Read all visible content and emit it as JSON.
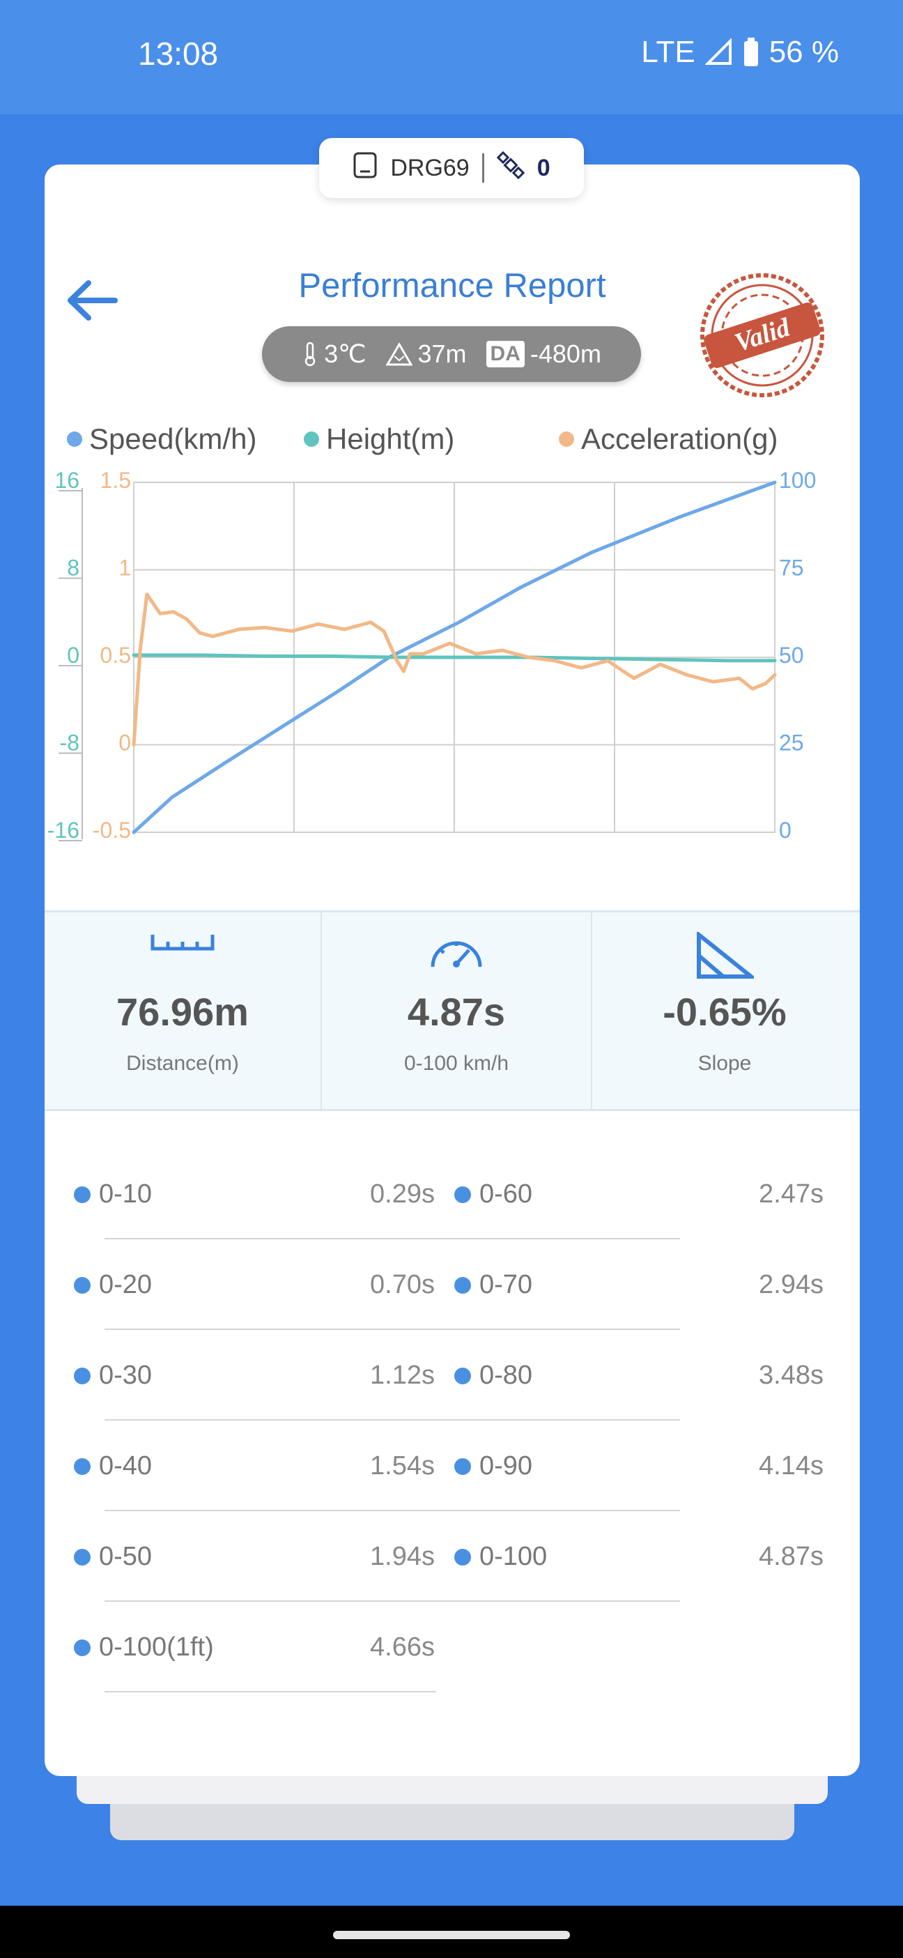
{
  "status_bar": {
    "time": "13:08",
    "network": "LTE",
    "battery": "56 %"
  },
  "device": {
    "name": "DRG69",
    "satellites": "0"
  },
  "header": {
    "back_icon": "arrow-left-icon",
    "title": "Performance Report",
    "stamp_text": "Valid"
  },
  "conditions": {
    "temperature": "3℃",
    "altitude": "37m",
    "da_label": "DA",
    "density_altitude": "-480m"
  },
  "legend": [
    {
      "name": "Speed(km/h)",
      "color": "#6ea8e8"
    },
    {
      "name": "Height(m)",
      "color": "#5fc4bd"
    },
    {
      "name": "Acceleration(g)",
      "color": "#f2b887"
    }
  ],
  "chart_data": {
    "type": "line",
    "title": "",
    "grid": true,
    "x_range": [
      0,
      4.87
    ],
    "axes": {
      "height_ticks": [
        "16",
        "8",
        "0",
        "-8",
        "-16"
      ],
      "accel_ticks": [
        "1.5",
        "1",
        "0.5",
        "0",
        "-0.5"
      ],
      "speed_ticks": [
        "100",
        "75",
        "50",
        "25",
        "0"
      ],
      "height_range": [
        -16,
        16
      ],
      "accel_range": [
        -0.5,
        1.5
      ],
      "speed_range": [
        0,
        100
      ]
    },
    "series": [
      {
        "name": "Speed(km/h)",
        "axis": "speed",
        "color": "#6ea8e8",
        "x": [
          0,
          0.29,
          0.7,
          1.12,
          1.54,
          1.94,
          2.47,
          2.94,
          3.48,
          4.14,
          4.87
        ],
        "y": [
          0,
          10,
          20,
          30,
          40,
          50,
          60,
          70,
          80,
          90,
          100
        ]
      },
      {
        "name": "Height(m)",
        "axis": "height",
        "color": "#5fc4bd",
        "x": [
          0,
          0.5,
          1.0,
          1.5,
          2.0,
          2.5,
          3.0,
          3.5,
          4.0,
          4.5,
          4.87
        ],
        "y": [
          0.2,
          0.2,
          0.1,
          0.1,
          0.0,
          0.0,
          0.0,
          -0.1,
          -0.2,
          -0.3,
          -0.3
        ]
      },
      {
        "name": "Acceleration(g)",
        "axis": "accel",
        "color": "#f2b887",
        "x": [
          0,
          0.05,
          0.1,
          0.2,
          0.3,
          0.4,
          0.5,
          0.6,
          0.8,
          1.0,
          1.2,
          1.4,
          1.6,
          1.8,
          1.9,
          2.0,
          2.05,
          2.1,
          2.2,
          2.4,
          2.6,
          2.8,
          3.0,
          3.2,
          3.4,
          3.6,
          3.8,
          4.0,
          4.2,
          4.4,
          4.6,
          4.7,
          4.8,
          4.87
        ],
        "y": [
          0.0,
          0.55,
          0.86,
          0.75,
          0.76,
          0.72,
          0.64,
          0.62,
          0.66,
          0.67,
          0.65,
          0.69,
          0.66,
          0.7,
          0.65,
          0.48,
          0.42,
          0.52,
          0.52,
          0.58,
          0.52,
          0.54,
          0.5,
          0.48,
          0.44,
          0.48,
          0.38,
          0.46,
          0.4,
          0.36,
          0.38,
          0.32,
          0.35,
          0.4
        ]
      }
    ]
  },
  "stats": [
    {
      "icon": "ruler-icon",
      "value": "76.96m",
      "label": "Distance(m)"
    },
    {
      "icon": "speedometer-icon",
      "value": "4.87s",
      "label": "0-100 km/h"
    },
    {
      "icon": "slope-icon",
      "value": "-0.65%",
      "label": "Slope"
    }
  ],
  "times_left": [
    {
      "label": "0-10",
      "value": "0.29s"
    },
    {
      "label": "0-20",
      "value": "0.70s"
    },
    {
      "label": "0-30",
      "value": "1.12s"
    },
    {
      "label": "0-40",
      "value": "1.54s"
    },
    {
      "label": "0-50",
      "value": "1.94s"
    },
    {
      "label": "0-100(1ft)",
      "value": "4.66s"
    }
  ],
  "times_right": [
    {
      "label": "0-60",
      "value": "2.47s"
    },
    {
      "label": "0-70",
      "value": "2.94s"
    },
    {
      "label": "0-80",
      "value": "3.48s"
    },
    {
      "label": "0-90",
      "value": "4.14s"
    },
    {
      "label": "0-100",
      "value": "4.87s"
    }
  ]
}
